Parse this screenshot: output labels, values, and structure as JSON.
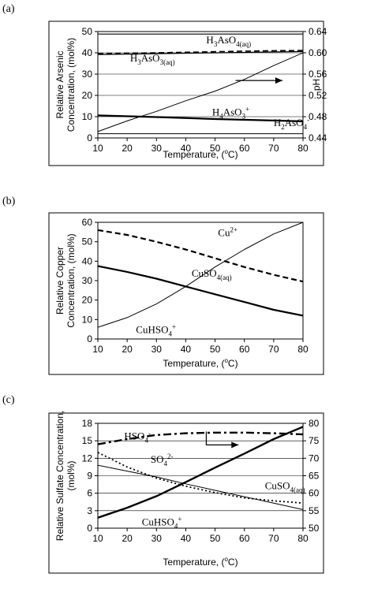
{
  "chart_data": [
    {
      "panel_label": "(a)",
      "type": "line",
      "xlabel": "Temperature, (°C)",
      "ylabel_lines": [
        "Relative Arsenic",
        "Concentration, (mol%)"
      ],
      "y2label": "pH",
      "xlim": [
        10,
        80
      ],
      "ylim": [
        0,
        50
      ],
      "y2lim": [
        0.44,
        0.64
      ],
      "xticks": [
        "10",
        "20",
        "30",
        "40",
        "50",
        "60",
        "70",
        "80"
      ],
      "yticks": [
        "0",
        "10",
        "20",
        "30",
        "40",
        "50"
      ],
      "y2ticks": [
        "0.44",
        "0.48",
        "0.52",
        "0.56",
        "0.60",
        "0.64"
      ],
      "grid": "horizontal",
      "series": [
        {
          "axis": "left",
          "style": "solid",
          "width": 1.2,
          "x": [
            10,
            80
          ],
          "y": [
            48.8,
            48.8
          ]
        },
        {
          "axis": "left",
          "style": "dashed",
          "width": 1.6,
          "x": [
            10,
            30,
            50,
            65,
            80
          ],
          "y": [
            39.6,
            40.0,
            40.5,
            40.9,
            41.1
          ]
        },
        {
          "axis": "left",
          "style": "solid",
          "width": 1.2,
          "x": [
            10,
            20,
            30,
            40,
            50,
            60,
            70,
            80
          ],
          "y": [
            39.2,
            39.4,
            39.6,
            39.8,
            40.0,
            40.2,
            40.4,
            40.6
          ]
        },
        {
          "axis": "left",
          "style": "solid",
          "width": 2.2,
          "x": [
            10,
            30,
            50,
            70,
            80
          ],
          "y": [
            10.6,
            9.8,
            8.9,
            8.2,
            7.8
          ]
        },
        {
          "axis": "left",
          "style": "solid",
          "width": 1,
          "x": [
            10,
            80
          ],
          "y": [
            2.0,
            2.0
          ]
        },
        {
          "axis": "right",
          "style": "solid",
          "width": 1,
          "x": [
            10,
            20,
            30,
            40,
            50,
            60,
            70,
            80
          ],
          "y": [
            0.452,
            0.472,
            0.49,
            0.51,
            0.528,
            0.55,
            0.576,
            0.6
          ]
        }
      ],
      "annotations": [
        {
          "text": "H3AsO4(aq)",
          "x": 47,
          "y": 44.5
        },
        {
          "text": "H3AsO3(aq)",
          "x": 21,
          "y": 36
        },
        {
          "text": "H4AsO3+",
          "x": 49,
          "y": 10.5
        },
        {
          "text": "H2AsO4-",
          "x": 70,
          "y": 5.5
        }
      ],
      "arrow": {
        "from": [
          57,
          27
        ],
        "to": [
          73,
          27
        ]
      }
    },
    {
      "panel_label": "(b)",
      "type": "line",
      "xlabel": "Temperature, (°C)",
      "ylabel_lines": [
        "Relative Copper",
        "Concentration, (mol%)"
      ],
      "xlim": [
        10,
        80
      ],
      "ylim": [
        0,
        60
      ],
      "xticks": [
        "10",
        "20",
        "30",
        "40",
        "50",
        "60",
        "70",
        "80"
      ],
      "yticks": [
        "0",
        "10",
        "20",
        "30",
        "40",
        "50",
        "60"
      ],
      "grid": "none",
      "series": [
        {
          "axis": "left",
          "style": "dashed",
          "width": 2.2,
          "x": [
            10,
            20,
            30,
            40,
            50,
            60,
            70,
            80
          ],
          "y": [
            56,
            53.5,
            50,
            46,
            41.5,
            37,
            33,
            29.5
          ]
        },
        {
          "axis": "left",
          "style": "solid",
          "width": 2.2,
          "x": [
            10,
            20,
            30,
            40,
            50,
            60,
            70,
            80
          ],
          "y": [
            37.5,
            34.5,
            31,
            27,
            23,
            19,
            15,
            12
          ]
        },
        {
          "axis": "left",
          "style": "solid",
          "width": 1,
          "x": [
            10,
            20,
            30,
            40,
            50,
            60,
            70,
            80
          ],
          "y": [
            6,
            11,
            18,
            27,
            37,
            46,
            54,
            60
          ]
        }
      ],
      "annotations": [
        {
          "text": "Cu2+",
          "x": 51,
          "y": 53
        },
        {
          "text": "CuSO4(aq)",
          "x": 42,
          "y": 32
        },
        {
          "text": "CuHSO4+",
          "x": 23,
          "y": 3
        }
      ]
    },
    {
      "panel_label": "(c)",
      "type": "line",
      "xlabel": "Temperature, (°C)",
      "ylabel_lines": [
        "Relative Sulfate Concentration,",
        "(mol%)"
      ],
      "xlim": [
        10,
        80
      ],
      "ylim": [
        0,
        18
      ],
      "y2lim": [
        50,
        80
      ],
      "xticks": [
        "10",
        "20",
        "30",
        "40",
        "50",
        "60",
        "70",
        "80"
      ],
      "yticks": [
        "0",
        "3",
        "6",
        "9",
        "12",
        "15",
        "18"
      ],
      "y2ticks": [
        "50",
        "55",
        "60",
        "65",
        "70",
        "75",
        "80"
      ],
      "grid": "horizontal",
      "series": [
        {
          "axis": "left",
          "style": "dashdot",
          "width": 2.4,
          "x": [
            10,
            20,
            30,
            40,
            50,
            60,
            70,
            80
          ],
          "y": [
            14.4,
            15.3,
            16.0,
            16.3,
            16.4,
            16.4,
            16.3,
            16.1
          ]
        },
        {
          "axis": "left",
          "style": "dotted",
          "width": 1.8,
          "x": [
            10,
            20,
            30,
            40,
            50,
            60,
            70,
            80
          ],
          "y": [
            13.0,
            10.5,
            8.6,
            7.2,
            6.1,
            5.2,
            4.7,
            4.3
          ]
        },
        {
          "axis": "left",
          "style": "solid",
          "width": 1,
          "x": [
            10,
            20,
            30,
            40,
            50,
            60,
            70,
            80
          ],
          "y": [
            10.8,
            9.8,
            8.8,
            7.6,
            6.5,
            5.4,
            4.3,
            3.2
          ]
        },
        {
          "axis": "left",
          "style": "solid",
          "width": 2.4,
          "x": [
            10,
            20,
            30,
            40,
            50,
            60,
            70,
            80
          ],
          "y": [
            1.8,
            3.5,
            5.5,
            7.9,
            10.4,
            12.8,
            15.3,
            17.4
          ]
        }
      ],
      "annotations": [
        {
          "text": "HSO4-",
          "x": 19,
          "y": 15.2
        },
        {
          "text": "SO42-",
          "x": 28,
          "y": 11.2
        },
        {
          "text": "CuSO4(aq)",
          "x": 67,
          "y": 6.7
        },
        {
          "text": "CuHSO4+",
          "x": 25,
          "y": 0.5
        }
      ],
      "arrow": {
        "from": [
          47,
          16.6
        ],
        "to": [
          47,
          14.3
        ],
        "to2": [
          58,
          14.3
        ]
      }
    }
  ]
}
